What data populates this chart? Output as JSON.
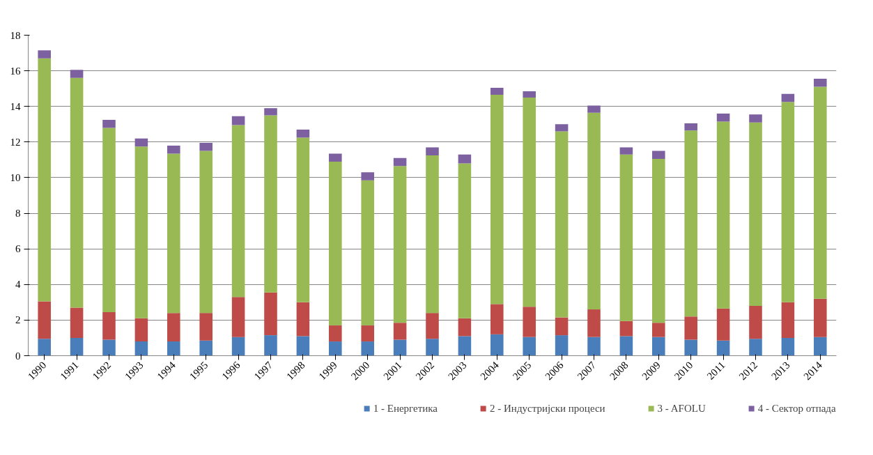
{
  "chart_data": {
    "type": "bar",
    "stacked": true,
    "categories": [
      "1990",
      "1991",
      "1992",
      "1993",
      "1994",
      "1995",
      "1996",
      "1997",
      "1998",
      "1999",
      "2000",
      "2001",
      "2002",
      "2003",
      "2004",
      "2005",
      "2006",
      "2007",
      "2008",
      "2009",
      "2010",
      "2011",
      "2012",
      "2013",
      "2014"
    ],
    "series": [
      {
        "name": "1 - Енергетика",
        "color": "#4a7ebb",
        "values": [
          0.95,
          1.0,
          0.9,
          0.8,
          0.8,
          0.85,
          1.05,
          1.15,
          1.1,
          0.8,
          0.8,
          0.9,
          0.95,
          1.1,
          1.2,
          1.05,
          1.15,
          1.05,
          1.1,
          1.05,
          0.9,
          0.85,
          0.95,
          1.0,
          1.05
        ]
      },
      {
        "name": "2 - Индустријски процеси",
        "color": "#be4b48",
        "values": [
          2.1,
          1.7,
          1.55,
          1.3,
          1.6,
          1.55,
          2.25,
          2.4,
          1.9,
          0.9,
          0.9,
          0.95,
          1.45,
          1.0,
          1.7,
          1.7,
          1.0,
          1.55,
          0.85,
          0.8,
          1.3,
          1.8,
          1.85,
          2.0,
          2.15
        ]
      },
      {
        "name": "3 - AFOLU",
        "color": "#98b954",
        "values": [
          13.65,
          12.9,
          10.35,
          9.65,
          8.95,
          9.1,
          9.65,
          9.95,
          9.25,
          9.2,
          8.15,
          8.8,
          8.85,
          8.7,
          11.75,
          11.75,
          10.45,
          11.05,
          9.35,
          9.2,
          10.45,
          10.5,
          10.3,
          11.25,
          11.9
        ]
      },
      {
        "name": "4 - Сектор отпада",
        "color": "#7d60a0",
        "values": [
          0.45,
          0.45,
          0.45,
          0.45,
          0.45,
          0.45,
          0.5,
          0.4,
          0.45,
          0.45,
          0.45,
          0.45,
          0.45,
          0.5,
          0.4,
          0.35,
          0.4,
          0.4,
          0.4,
          0.45,
          0.4,
          0.45,
          0.45,
          0.45,
          0.45
        ]
      }
    ],
    "ylim": [
      0,
      18
    ],
    "yticks": [
      0,
      2,
      4,
      6,
      8,
      10,
      12,
      14,
      16,
      18
    ],
    "grid": "y",
    "legend": "bottom"
  }
}
